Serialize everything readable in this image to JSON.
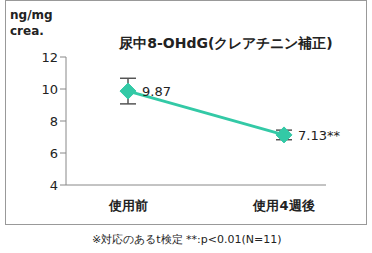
{
  "chart_data": {
    "type": "line",
    "title": "尿中8-OHdG(クレアチニン補正)",
    "y_label": "ng/mg crea.",
    "categories": [
      "使用前",
      "使用4週後"
    ],
    "values": [
      9.87,
      7.13
    ],
    "value_labels": [
      "9.87",
      "7.13**"
    ],
    "errors": [
      0.8,
      0.3
    ],
    "color": "#33c9a6",
    "marker": "diamond",
    "ylim": [
      4,
      12
    ],
    "yticks": [
      4,
      6,
      8,
      10,
      12
    ],
    "grid": false,
    "data_labels": true,
    "footnote": "※対応のあるt検定 **:p<0.01(N=11)"
  }
}
